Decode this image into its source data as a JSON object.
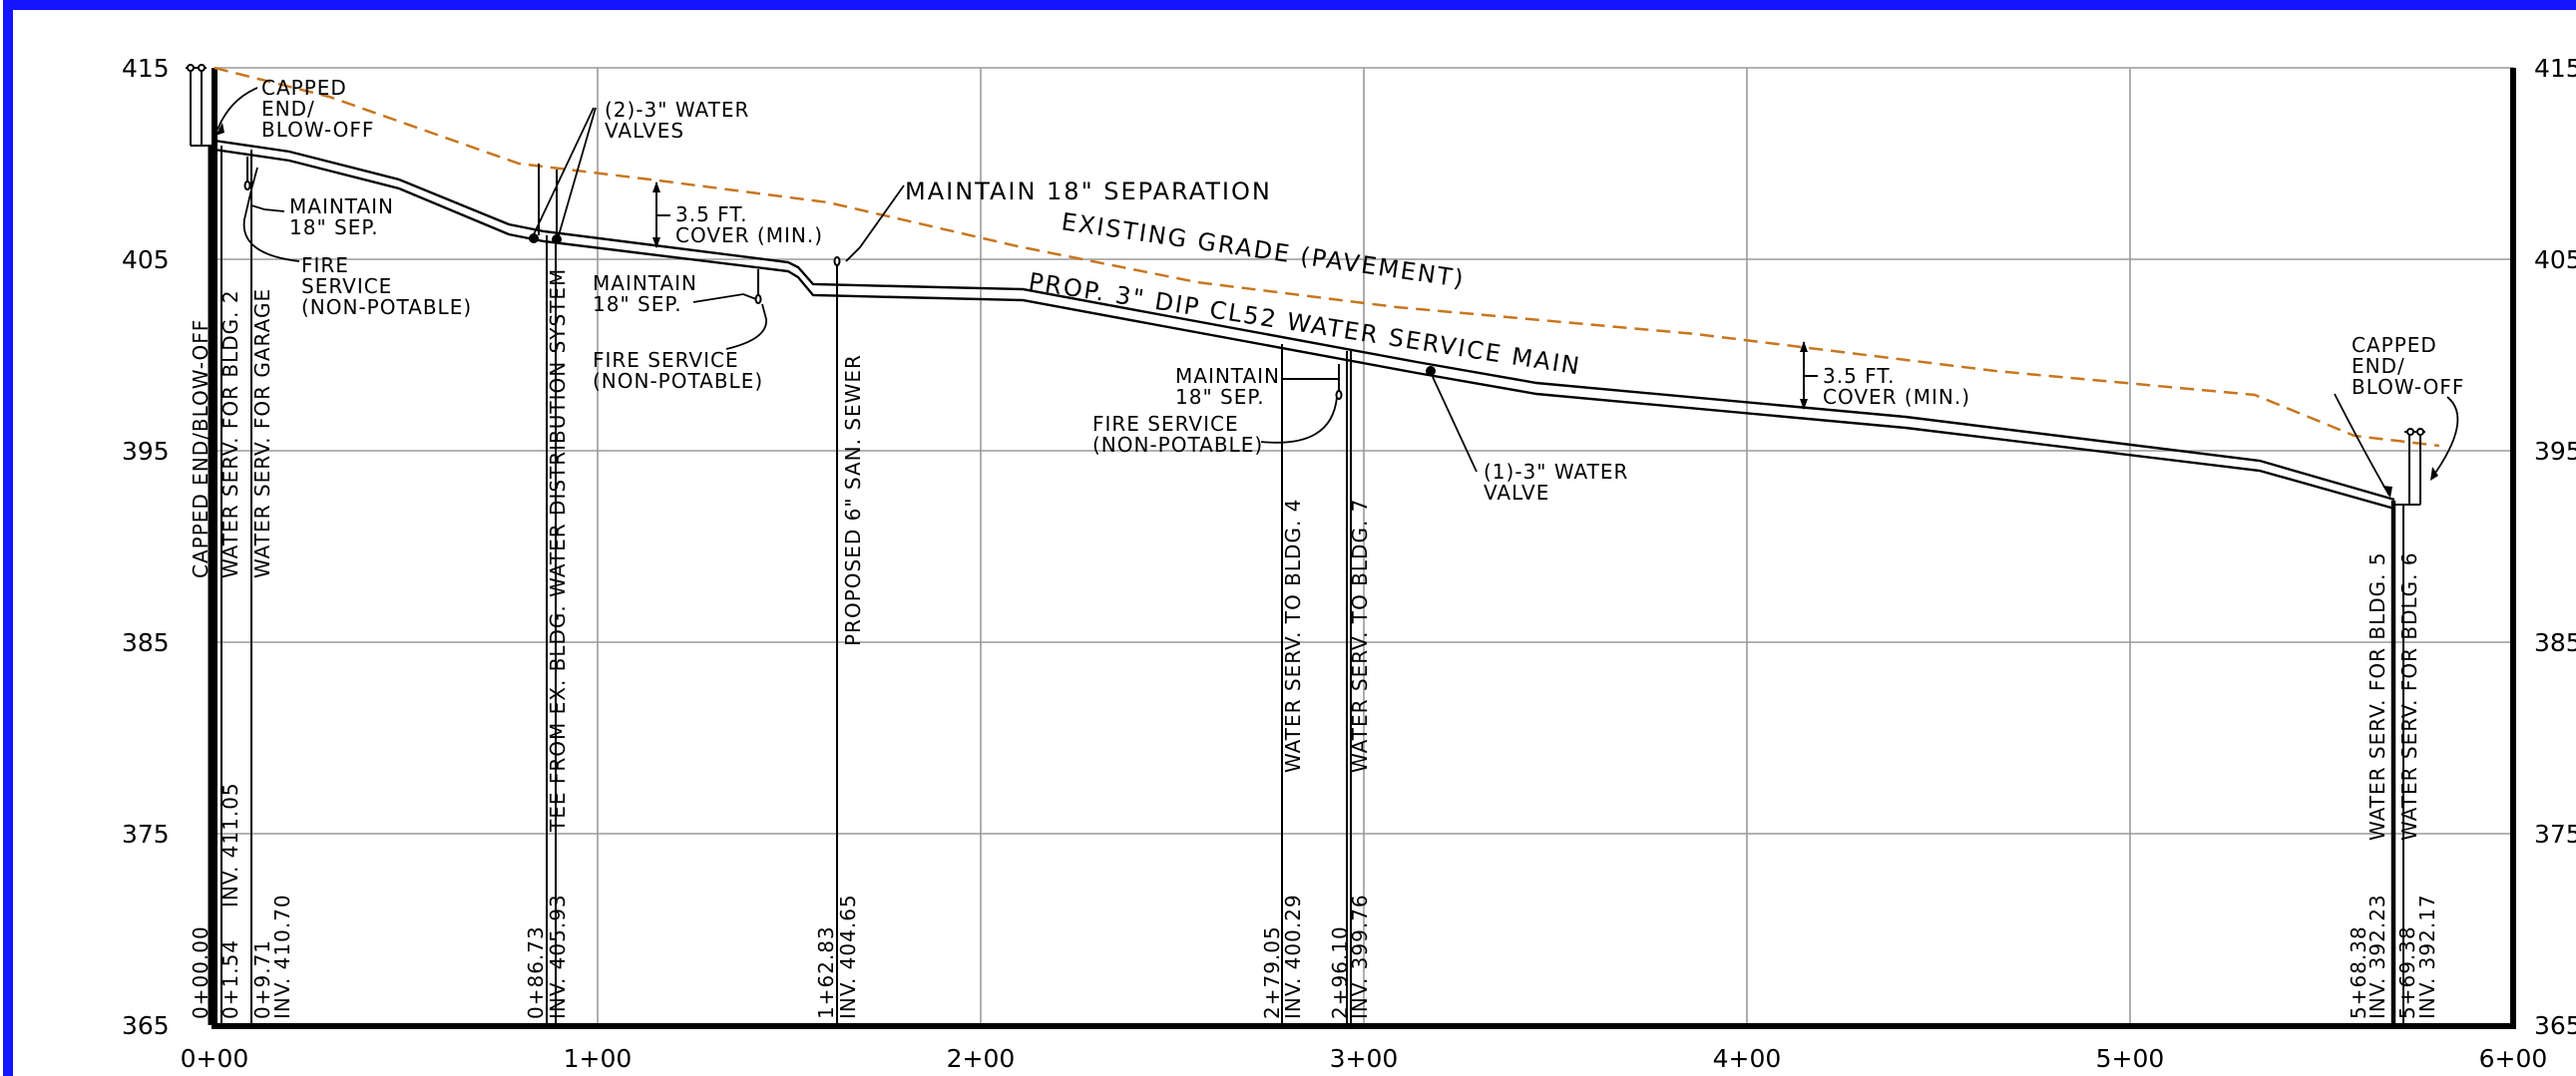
{
  "colors": {
    "frame": "#1414ff",
    "grid": "#9a9a9a",
    "existing_grade": "#c8761e",
    "ink": "#000000"
  },
  "axes": {
    "y_ticks_left": [
      "415",
      "405",
      "395",
      "385",
      "375",
      "365"
    ],
    "y_ticks_right": [
      "415",
      "405",
      "395",
      "385",
      "375",
      "365"
    ],
    "x_ticks": [
      "0+00",
      "1+00",
      "2+00",
      "3+00",
      "4+00",
      "5+00",
      "6+00"
    ]
  },
  "labels": {
    "capped_start": [
      "CAPPED",
      "END/",
      "BLOW-OFF"
    ],
    "maintain_sep_1": [
      "MAINTAIN",
      "18\" SEP."
    ],
    "fire_service_1": [
      "FIRE",
      "SERVICE",
      "(NON-POTABLE)"
    ],
    "water_valves_2": [
      "(2)-3\" WATER",
      "VALVES"
    ],
    "cover_1": [
      "3.5 FT.",
      "COVER (MIN.)"
    ],
    "maintain_sep_2": [
      "MAINTAIN",
      "18\" SEP."
    ],
    "fire_service_2": [
      "FIRE SERVICE",
      "(NON-POTABLE)"
    ],
    "maintain_18_separation": "MAINTAIN 18\" SEPARATION",
    "existing_grade": "EXISTING GRADE (PAVEMENT)",
    "prop_main": "PROP. 3\" DIP CL52 WATER SERVICE MAIN",
    "maintain_sep_3": [
      "MAINTAIN",
      "18\" SEP."
    ],
    "fire_service_3": [
      "FIRE SERVICE",
      "(NON-POTABLE)"
    ],
    "water_valve_1": [
      "(1)-3\" WATER",
      "VALVE"
    ],
    "cover_2": [
      "3.5 FT.",
      "COVER (MIN.)"
    ],
    "capped_end": [
      "CAPPED",
      "END/",
      "BLOW-OFF"
    ]
  },
  "stations": {
    "capped_end_label": "CAPPED END/BLOW-OFF",
    "sta_0_00": "0+00.00",
    "water_serv_bldg2": "WATER SERV. FOR BLDG. 2",
    "sta_0_01": "0+1.54",
    "inv_0_01": "INV. 411.05",
    "water_serv_garage": "WATER SERV. FOR GARAGE",
    "sta_0_09": "0+9.71",
    "inv_0_09": "INV. 410.70",
    "tee_label": "TEE FROM EX. BLDG. WATER DISTRIBUTION SYSTEM",
    "sta_0_86": "0+86.73",
    "inv_0_86": "INV. 405.93",
    "san_sewer": "PROPOSED 6\" SAN. SEWER",
    "sta_1_62": "1+62.83",
    "inv_1_62": "INV. 404.65",
    "water_serv_bldg4": "WATER SERV. TO BLDG. 4",
    "sta_2_79": "2+79.05",
    "inv_2_79": "INV. 400.29",
    "water_serv_bldg7": "WATER SERV. TO BLDG. 7",
    "sta_2_96": "2+96.10",
    "inv_2_96": "INV. 399.76",
    "water_serv_bldg5": "WATER SERV. FOR BLDG. 5",
    "sta_5_68": "5+68.38",
    "inv_5_68": "INV. 392.23",
    "water_serv_bdlg6": "WATER SERV. FOR BDLG. 6",
    "sta_5_69": "5+69.38",
    "inv_5_69": "INV. 392.17"
  }
}
